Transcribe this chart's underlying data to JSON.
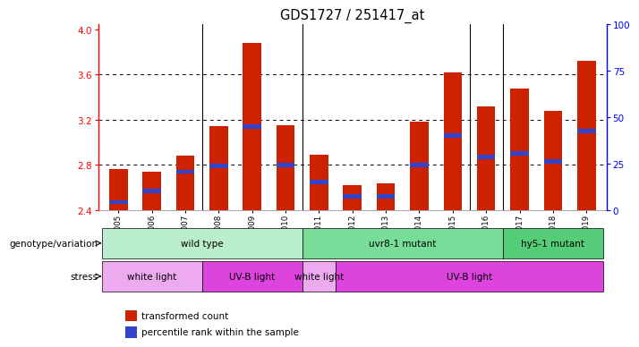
{
  "title": "GDS1727 / 251417_at",
  "samples": [
    "GSM81005",
    "GSM81006",
    "GSM81007",
    "GSM81008",
    "GSM81009",
    "GSM81010",
    "GSM81011",
    "GSM81012",
    "GSM81013",
    "GSM81014",
    "GSM81015",
    "GSM81016",
    "GSM81017",
    "GSM81018",
    "GSM81019"
  ],
  "bar_values": [
    2.76,
    2.74,
    2.88,
    3.14,
    3.88,
    3.15,
    2.89,
    2.62,
    2.64,
    3.18,
    3.62,
    3.32,
    3.48,
    3.28,
    3.72
  ],
  "blue_marker_values": [
    2.47,
    2.57,
    2.74,
    2.79,
    3.14,
    2.8,
    2.65,
    2.52,
    2.52,
    2.8,
    3.06,
    2.87,
    2.9,
    2.83,
    3.1
  ],
  "ymin": 2.4,
  "ymax": 4.05,
  "yticks_left": [
    2.4,
    2.8,
    3.2,
    3.6,
    4.0
  ],
  "yticks_right": [
    0,
    25,
    50,
    75,
    100
  ],
  "bar_color": "#cc2200",
  "blue_color": "#3344cc",
  "genotype_groups": [
    {
      "label": "wild type",
      "start": 0,
      "end": 6,
      "color": "#bbeecc"
    },
    {
      "label": "uvr8-1 mutant",
      "start": 6,
      "end": 12,
      "color": "#77dd99"
    },
    {
      "label": "hy5-1 mutant",
      "start": 12,
      "end": 15,
      "color": "#55cc77"
    }
  ],
  "stress_groups": [
    {
      "label": "white light",
      "start": 0,
      "end": 3,
      "color": "#eeaaee"
    },
    {
      "label": "UV-B light",
      "start": 3,
      "end": 6,
      "color": "#dd44dd"
    },
    {
      "label": "white light",
      "start": 6,
      "end": 7,
      "color": "#eeaaee"
    },
    {
      "label": "UV-B light",
      "start": 7,
      "end": 15,
      "color": "#dd44dd"
    }
  ],
  "vline_positions": [
    2.5,
    5.5,
    10.5,
    11.5
  ],
  "grid_lines": [
    2.8,
    3.2,
    3.6
  ],
  "genotype_label": "genotype/variation",
  "stress_label": "stress",
  "legend_red_label": "transformed count",
  "legend_blue_label": "percentile rank within the sample"
}
